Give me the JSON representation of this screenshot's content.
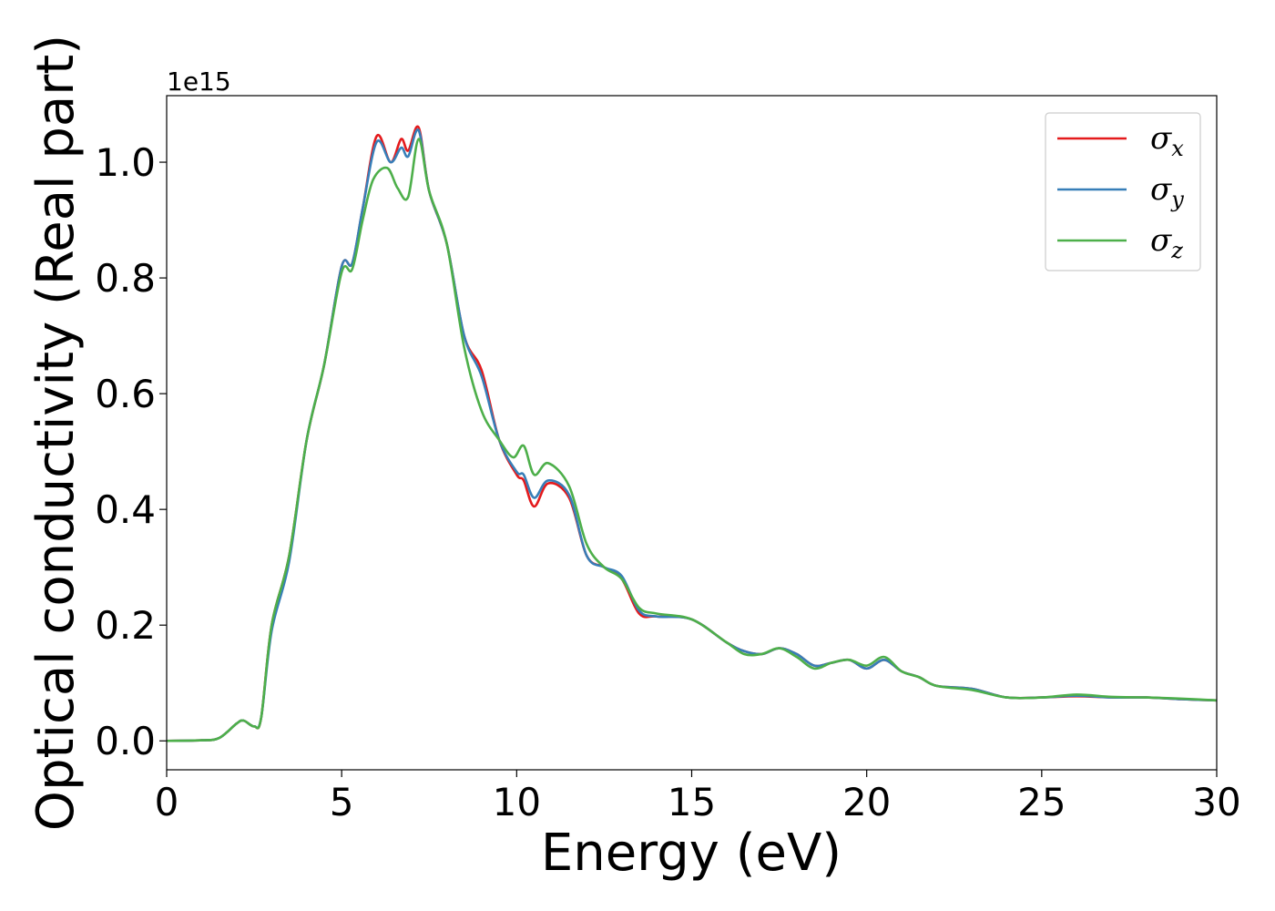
{
  "chart_data": {
    "type": "line",
    "title": "",
    "xlabel": "Energy (eV)",
    "ylabel": "Optical conductivity (Real part)",
    "y_offset_label": "1e15",
    "xlim": [
      0,
      30
    ],
    "ylim": [
      -0.05,
      1.115
    ],
    "x_ticks": [
      0,
      5,
      10,
      15,
      20,
      25,
      30
    ],
    "x_tick_labels": [
      "0",
      "5",
      "10",
      "15",
      "20",
      "25",
      "30"
    ],
    "y_ticks": [
      0.0,
      0.2,
      0.4,
      0.6,
      0.8,
      1.0
    ],
    "y_tick_labels": [
      "0.0",
      "0.2",
      "0.4",
      "0.6",
      "0.8",
      "1.0"
    ],
    "grid": false,
    "legend_position": "top-right",
    "series": [
      {
        "name": "σx",
        "symbol": "σ",
        "subscript": "x",
        "color": "#e41a1c",
        "points": [
          [
            0,
            0
          ],
          [
            1,
            0.001
          ],
          [
            1.5,
            0.005
          ],
          [
            2,
            0.03
          ],
          [
            2.2,
            0.035
          ],
          [
            2.5,
            0.025
          ],
          [
            2.7,
            0.04
          ],
          [
            3,
            0.2
          ],
          [
            3.5,
            0.32
          ],
          [
            4,
            0.52
          ],
          [
            4.5,
            0.65
          ],
          [
            5,
            0.82
          ],
          [
            5.3,
            0.825
          ],
          [
            5.6,
            0.92
          ],
          [
            6,
            1.045
          ],
          [
            6.4,
            1.0
          ],
          [
            6.7,
            1.04
          ],
          [
            6.9,
            1.02
          ],
          [
            7.2,
            1.06
          ],
          [
            7.5,
            0.95
          ],
          [
            8,
            0.86
          ],
          [
            8.5,
            0.7
          ],
          [
            9,
            0.64
          ],
          [
            9.5,
            0.52
          ],
          [
            10,
            0.46
          ],
          [
            10.2,
            0.45
          ],
          [
            10.5,
            0.405
          ],
          [
            10.9,
            0.445
          ],
          [
            11.5,
            0.42
          ],
          [
            12,
            0.32
          ],
          [
            12.5,
            0.3
          ],
          [
            13,
            0.28
          ],
          [
            13.5,
            0.22
          ],
          [
            14,
            0.215
          ],
          [
            15,
            0.21
          ],
          [
            16,
            0.17
          ],
          [
            16.5,
            0.155
          ],
          [
            17,
            0.15
          ],
          [
            17.5,
            0.16
          ],
          [
            18,
            0.15
          ],
          [
            18.5,
            0.13
          ],
          [
            19,
            0.135
          ],
          [
            19.5,
            0.14
          ],
          [
            20,
            0.125
          ],
          [
            20.5,
            0.14
          ],
          [
            21,
            0.12
          ],
          [
            21.5,
            0.11
          ],
          [
            22,
            0.095
          ],
          [
            23,
            0.09
          ],
          [
            24,
            0.075
          ],
          [
            25,
            0.075
          ],
          [
            26,
            0.077
          ],
          [
            27,
            0.075
          ],
          [
            28,
            0.075
          ],
          [
            29,
            0.072
          ],
          [
            30,
            0.07
          ]
        ]
      },
      {
        "name": "σy",
        "symbol": "σ",
        "subscript": "y",
        "color": "#377eb8",
        "points": [
          [
            0,
            0
          ],
          [
            1,
            0.001
          ],
          [
            1.5,
            0.005
          ],
          [
            2,
            0.03
          ],
          [
            2.2,
            0.035
          ],
          [
            2.5,
            0.025
          ],
          [
            2.7,
            0.04
          ],
          [
            3,
            0.19
          ],
          [
            3.5,
            0.31
          ],
          [
            4,
            0.52
          ],
          [
            4.5,
            0.65
          ],
          [
            5,
            0.82
          ],
          [
            5.3,
            0.825
          ],
          [
            5.6,
            0.92
          ],
          [
            6,
            1.035
          ],
          [
            6.4,
            1.0
          ],
          [
            6.7,
            1.025
          ],
          [
            6.9,
            1.01
          ],
          [
            7.2,
            1.055
          ],
          [
            7.5,
            0.95
          ],
          [
            8,
            0.86
          ],
          [
            8.5,
            0.7
          ],
          [
            9,
            0.63
          ],
          [
            9.5,
            0.52
          ],
          [
            10,
            0.465
          ],
          [
            10.2,
            0.46
          ],
          [
            10.5,
            0.42
          ],
          [
            10.9,
            0.45
          ],
          [
            11.5,
            0.425
          ],
          [
            12,
            0.32
          ],
          [
            12.5,
            0.3
          ],
          [
            13,
            0.285
          ],
          [
            13.5,
            0.225
          ],
          [
            14,
            0.215
          ],
          [
            15,
            0.21
          ],
          [
            16,
            0.17
          ],
          [
            16.5,
            0.155
          ],
          [
            17,
            0.15
          ],
          [
            17.5,
            0.16
          ],
          [
            18,
            0.15
          ],
          [
            18.5,
            0.13
          ],
          [
            19,
            0.135
          ],
          [
            19.5,
            0.14
          ],
          [
            20,
            0.125
          ],
          [
            20.5,
            0.14
          ],
          [
            21,
            0.12
          ],
          [
            21.5,
            0.11
          ],
          [
            22,
            0.095
          ],
          [
            23,
            0.09
          ],
          [
            24,
            0.075
          ],
          [
            25,
            0.075
          ],
          [
            26,
            0.078
          ],
          [
            27,
            0.075
          ],
          [
            28,
            0.075
          ],
          [
            29,
            0.072
          ],
          [
            30,
            0.07
          ]
        ]
      },
      {
        "name": "σz",
        "symbol": "σ",
        "subscript": "z",
        "color": "#4daf4a",
        "points": [
          [
            0,
            0
          ],
          [
            1,
            0.001
          ],
          [
            1.5,
            0.005
          ],
          [
            2,
            0.03
          ],
          [
            2.2,
            0.035
          ],
          [
            2.5,
            0.025
          ],
          [
            2.7,
            0.04
          ],
          [
            3,
            0.2
          ],
          [
            3.5,
            0.32
          ],
          [
            4,
            0.52
          ],
          [
            4.5,
            0.65
          ],
          [
            5,
            0.81
          ],
          [
            5.3,
            0.815
          ],
          [
            5.6,
            0.9
          ],
          [
            5.9,
            0.97
          ],
          [
            6.3,
            0.99
          ],
          [
            6.6,
            0.955
          ],
          [
            6.9,
            0.94
          ],
          [
            7.2,
            1.04
          ],
          [
            7.5,
            0.95
          ],
          [
            8,
            0.86
          ],
          [
            8.5,
            0.68
          ],
          [
            9,
            0.57
          ],
          [
            9.5,
            0.52
          ],
          [
            9.9,
            0.49
          ],
          [
            10.2,
            0.51
          ],
          [
            10.5,
            0.46
          ],
          [
            10.9,
            0.48
          ],
          [
            11.5,
            0.44
          ],
          [
            12,
            0.34
          ],
          [
            12.5,
            0.3
          ],
          [
            13,
            0.28
          ],
          [
            13.5,
            0.23
          ],
          [
            14,
            0.22
          ],
          [
            15,
            0.21
          ],
          [
            16,
            0.17
          ],
          [
            16.5,
            0.15
          ],
          [
            17,
            0.15
          ],
          [
            17.5,
            0.16
          ],
          [
            18,
            0.145
          ],
          [
            18.5,
            0.125
          ],
          [
            19,
            0.135
          ],
          [
            19.5,
            0.14
          ],
          [
            20,
            0.13
          ],
          [
            20.5,
            0.145
          ],
          [
            21,
            0.12
          ],
          [
            21.5,
            0.11
          ],
          [
            22,
            0.095
          ],
          [
            23,
            0.088
          ],
          [
            24,
            0.075
          ],
          [
            25,
            0.075
          ],
          [
            26,
            0.08
          ],
          [
            27,
            0.076
          ],
          [
            28,
            0.075
          ],
          [
            29,
            0.073
          ],
          [
            30,
            0.07
          ]
        ]
      }
    ]
  }
}
